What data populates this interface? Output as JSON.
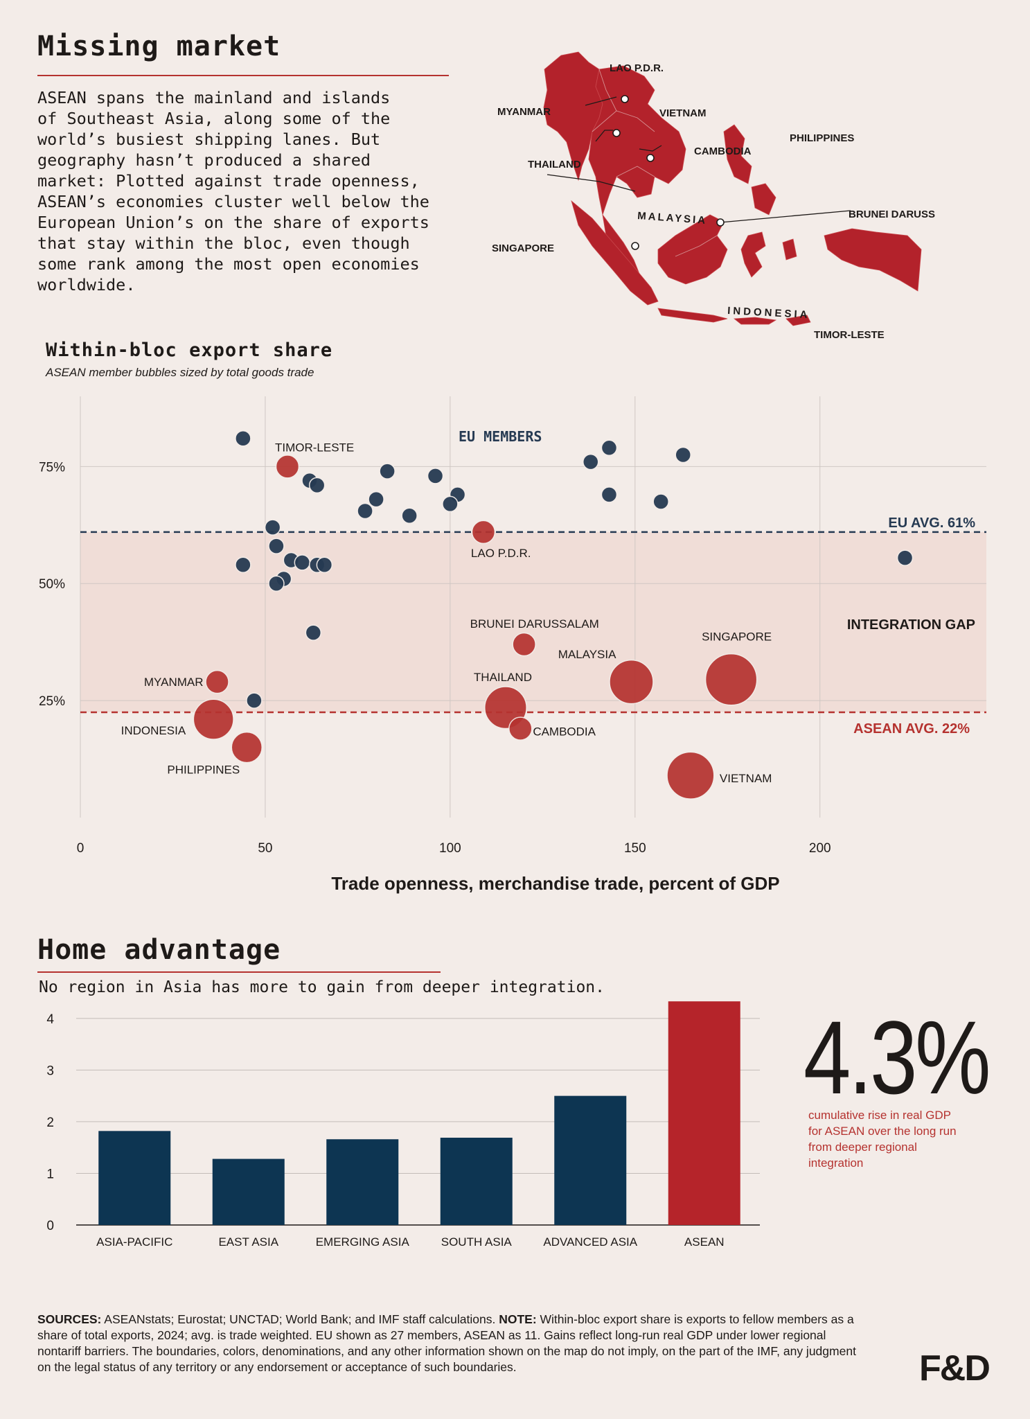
{
  "header": {
    "title": "Missing market",
    "intro": "ASEAN spans the mainland and islands\nof Southeast Asia, along some of the\nworld’s busiest shipping lanes. But\ngeography hasn’t produced a shared\nmarket: Plotted against trade openness,\nASEAN’s economies cluster well below the\nEuropean Union’s on the share of exports\nthat stay within the bloc, even though\nsome rank among the most open economies\nworldwide."
  },
  "map": {
    "labels": [
      "LAO P.D.R.",
      "MYANMAR",
      "VIETNAM",
      "THAILAND",
      "CAMBODIA",
      "PHILIPPINES",
      "MALAYSIA",
      "BRUNEI DARUSSALAM",
      "SINGAPORE",
      "INDONESIA",
      "TIMOR-LESTE"
    ]
  },
  "colors": {
    "eu": "#263a52",
    "asean": "#b5322f",
    "bar_blue": "#0d3552",
    "bar_red": "#b5242a",
    "gap_band": "#f0ddd7"
  },
  "chart_data": [
    {
      "type": "scatter",
      "title": "Within-bloc export share",
      "subtitle": "ASEAN member bubbles sized by total goods trade",
      "xlabel": "Trade openness, merchandise trade, percent of GDP",
      "ylabel": "",
      "xlim": [
        0,
        245
      ],
      "ylim": [
        0,
        90
      ],
      "xticks": [
        0,
        50,
        100,
        150,
        200
      ],
      "yticks": [
        25,
        50,
        75
      ],
      "ytick_labels": [
        "25%",
        "50%",
        "75%"
      ],
      "grid": true,
      "annotations": {
        "eu_members": "EU MEMBERS",
        "eu_avg": "EU AVG. 61%",
        "asean_avg": "ASEAN AVG. 22%",
        "gap": "INTEGRATION GAP"
      },
      "reference_lines": [
        {
          "name": "EU AVG. 61%",
          "y": 61
        },
        {
          "name": "ASEAN AVG. 22%",
          "y": 22.5
        }
      ],
      "series": [
        {
          "name": "EU MEMBERS",
          "points": [
            {
              "x": 44,
              "y": 81
            },
            {
              "x": 62,
              "y": 72
            },
            {
              "x": 64,
              "y": 71
            },
            {
              "x": 83,
              "y": 74
            },
            {
              "x": 96,
              "y": 73
            },
            {
              "x": 102,
              "y": 69
            },
            {
              "x": 100,
              "y": 67
            },
            {
              "x": 80,
              "y": 68
            },
            {
              "x": 77,
              "y": 65.5
            },
            {
              "x": 89,
              "y": 64.5
            },
            {
              "x": 138,
              "y": 76
            },
            {
              "x": 143,
              "y": 79
            },
            {
              "x": 163,
              "y": 77.5
            },
            {
              "x": 143,
              "y": 69
            },
            {
              "x": 157,
              "y": 67.5
            },
            {
              "x": 52,
              "y": 62
            },
            {
              "x": 53,
              "y": 58
            },
            {
              "x": 44,
              "y": 54
            },
            {
              "x": 57,
              "y": 55
            },
            {
              "x": 60,
              "y": 54.5
            },
            {
              "x": 64,
              "y": 54
            },
            {
              "x": 66,
              "y": 54
            },
            {
              "x": 55,
              "y": 51
            },
            {
              "x": 53,
              "y": 50
            },
            {
              "x": 63,
              "y": 39.5
            },
            {
              "x": 47,
              "y": 25
            },
            {
              "x": 223,
              "y": 55.5
            }
          ]
        },
        {
          "name": "ASEAN",
          "points": [
            {
              "label": "TIMOR-LESTE",
              "x": 56,
              "y": 75,
              "size": 1
            },
            {
              "label": "LAO P.D.R.",
              "x": 109,
              "y": 61,
              "size": 1
            },
            {
              "label": "BRUNEI DARUSSALAM",
              "x": 120,
              "y": 37,
              "size": 1
            },
            {
              "label": "MYANMAR",
              "x": 37,
              "y": 29,
              "size": 1
            },
            {
              "label": "INDONESIA",
              "x": 36,
              "y": 21,
              "size": 7
            },
            {
              "label": "PHILIPPINES",
              "x": 45,
              "y": 15,
              "size": 3
            },
            {
              "label": "THAILAND",
              "x": 115,
              "y": 23.5,
              "size": 8
            },
            {
              "label": "CAMBODIA",
              "x": 119,
              "y": 19,
              "size": 1
            },
            {
              "label": "MALAYSIA",
              "x": 149,
              "y": 29,
              "size": 9
            },
            {
              "label": "SINGAPORE",
              "x": 176,
              "y": 29.5,
              "size": 14
            },
            {
              "label": "VIETNAM",
              "x": 165,
              "y": 9,
              "size": 11
            }
          ]
        }
      ]
    },
    {
      "type": "bar",
      "title": "Home advantage",
      "subtitle": "No region in Asia has more to gain from deeper integration.",
      "categories": [
        "ASIA-PACIFIC",
        "EAST ASIA",
        "EMERGING ASIA",
        "SOUTH ASIA",
        "ADVANCED ASIA",
        "ASEAN"
      ],
      "values": [
        1.82,
        1.28,
        1.66,
        1.69,
        2.5,
        4.33
      ],
      "ylim": [
        0,
        4.4
      ],
      "yticks": [
        0,
        1,
        2,
        3,
        4
      ],
      "highlight": "ASEAN",
      "grid": true
    }
  ],
  "stat": {
    "value": "4.3%",
    "note": "cumulative rise in real GDP for ASEAN over the long run from deeper regional integration"
  },
  "footer": {
    "sources_label": "SOURCES:",
    "sources_text": " ASEANstats; Eurostat; UNCTAD;  World Bank; and IMF staff calculations. ",
    "note_label": "NOTE:",
    "note_text": " Within-bloc export share is exports to fellow members as a share of total exports, 2024;  avg. is trade weighted. EU shown as 27 members, ASEAN as 11. Gains reflect long-run real GDP under lower regional nontariff barriers. The boundaries, colors, denominations, and any other information shown on the map do not imply, on the part of the IMF, any judgment on the legal status of any territory or any endorsement or acceptance of such boundaries.",
    "logo": "F&D"
  }
}
